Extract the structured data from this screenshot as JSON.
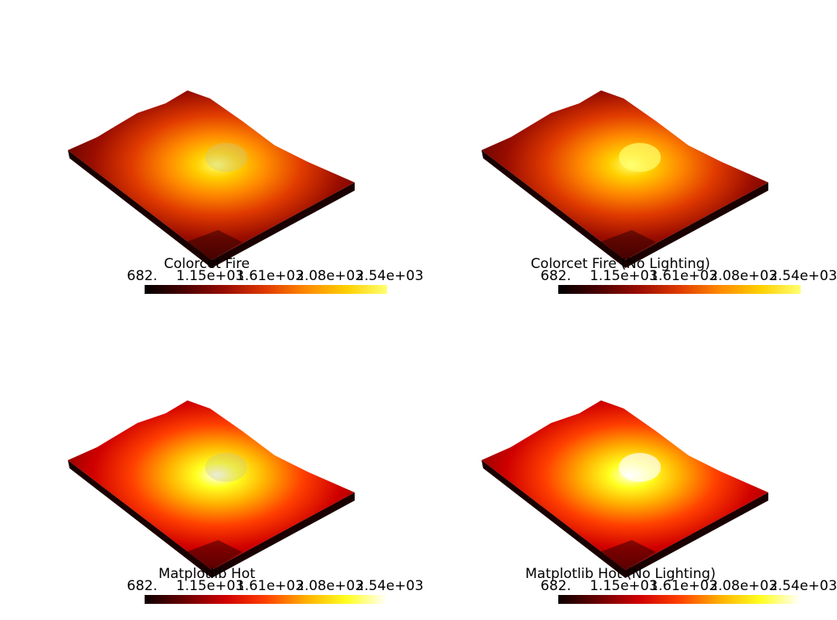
{
  "panels": [
    {
      "title": "Colorcet Fire",
      "lighting": true,
      "colors": [
        "#000000",
        "#4a0000",
        "#9a0d00",
        "#e03a00",
        "#ff8a00",
        "#ffd000",
        "#ffff70"
      ],
      "ticks": [
        "682.",
        "1.15e+03",
        "1.61e+03",
        "2.08e+03",
        "2.54e+03"
      ]
    },
    {
      "title": "Colorcet Fire (No Lighting)",
      "lighting": false,
      "colors": [
        "#000000",
        "#4a0000",
        "#9a0d00",
        "#e03a00",
        "#ff8a00",
        "#ffd000",
        "#ffff70"
      ],
      "ticks": [
        "682.",
        "1.15e+03",
        "1.61e+03",
        "2.08e+03",
        "2.54e+03"
      ]
    },
    {
      "title": "Matplotlib Hot",
      "lighting": true,
      "colors": [
        "#0b0000",
        "#6b0000",
        "#d00000",
        "#ff4000",
        "#ffb000",
        "#ffff20",
        "#ffffff"
      ],
      "ticks": [
        "682.",
        "1.15e+03",
        "1.61e+03",
        "2.08e+03",
        "2.54e+03"
      ]
    },
    {
      "title": "Matplotlib Hot (No Lighting)",
      "lighting": false,
      "colors": [
        "#0b0000",
        "#6b0000",
        "#d00000",
        "#ff4000",
        "#ffb000",
        "#ffff20",
        "#ffffff"
      ],
      "ticks": [
        "682.",
        "1.15e+03",
        "1.61e+03",
        "2.08e+03",
        "2.54e+03"
      ]
    }
  ]
}
